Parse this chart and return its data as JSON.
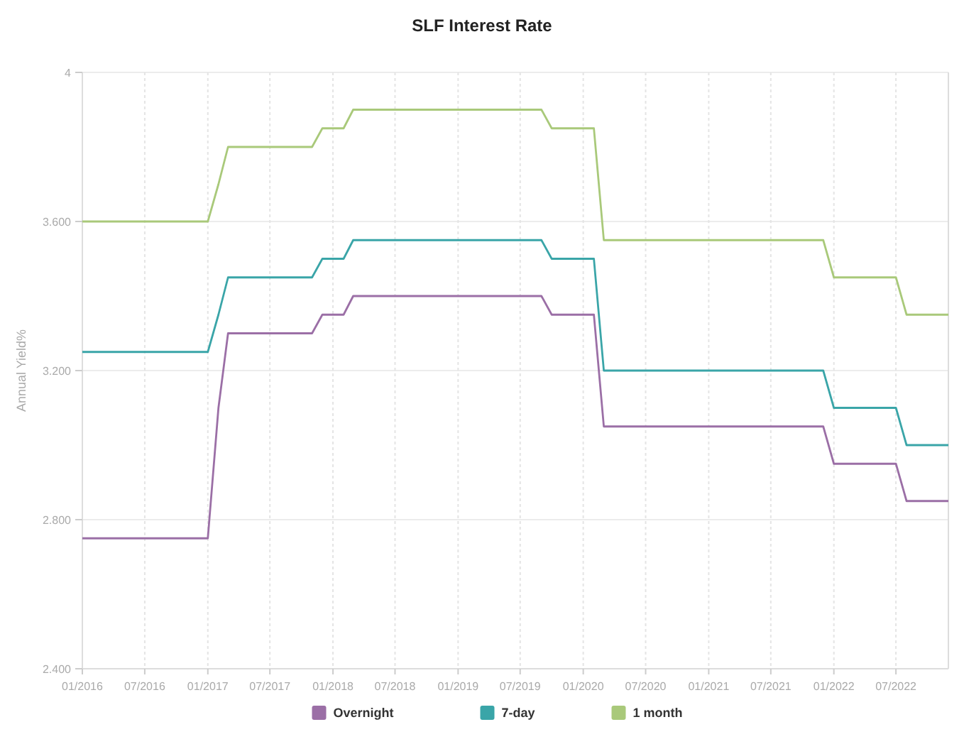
{
  "chart_data": {
    "type": "step",
    "title": "SLF Interest Rate",
    "ylabel": "Annual Yield%",
    "x": [
      "2016-01",
      "2017-01",
      "2017-02",
      "2017-03",
      "2017-11",
      "2017-12",
      "2018-02",
      "2018-03",
      "2019-09",
      "2019-10",
      "2020-02",
      "2020-03",
      "2021-12",
      "2022-01",
      "2022-07",
      "2022-08",
      "2022-12"
    ],
    "series": [
      {
        "name": "Overnight",
        "color": "#9b6fa6",
        "values": [
          2.75,
          2.75,
          3.1,
          3.3,
          3.3,
          3.35,
          3.35,
          3.4,
          3.4,
          3.35,
          3.35,
          3.05,
          3.05,
          2.95,
          2.95,
          2.85,
          2.85
        ]
      },
      {
        "name": "7-day",
        "color": "#3aa5a8",
        "values": [
          3.25,
          3.25,
          3.35,
          3.45,
          3.45,
          3.5,
          3.5,
          3.55,
          3.55,
          3.5,
          3.5,
          3.2,
          3.2,
          3.1,
          3.1,
          3.0,
          3.0
        ]
      },
      {
        "name": "1 month",
        "color": "#a9c97a",
        "values": [
          3.6,
          3.6,
          3.7,
          3.8,
          3.8,
          3.85,
          3.85,
          3.9,
          3.9,
          3.85,
          3.85,
          3.55,
          3.55,
          3.45,
          3.45,
          3.35,
          3.35
        ]
      }
    ],
    "xlim": [
      "2016-01",
      "2022-12"
    ],
    "xticks": [
      {
        "value": "2016-01",
        "label": "01/2016"
      },
      {
        "value": "2016-07",
        "label": "07/2016"
      },
      {
        "value": "2017-01",
        "label": "01/2017"
      },
      {
        "value": "2017-07",
        "label": "07/2017"
      },
      {
        "value": "2018-01",
        "label": "01/2018"
      },
      {
        "value": "2018-07",
        "label": "07/2018"
      },
      {
        "value": "2019-01",
        "label": "01/2019"
      },
      {
        "value": "2019-07",
        "label": "07/2019"
      },
      {
        "value": "2020-01",
        "label": "01/2020"
      },
      {
        "value": "2020-07",
        "label": "07/2020"
      },
      {
        "value": "2021-01",
        "label": "01/2021"
      },
      {
        "value": "2021-07",
        "label": "07/2021"
      },
      {
        "value": "2022-01",
        "label": "01/2022"
      },
      {
        "value": "2022-07",
        "label": "07/2022"
      }
    ],
    "ylim": [
      2.4,
      4
    ],
    "yticks": [
      {
        "value": 2.4,
        "label": "2.400"
      },
      {
        "value": 2.8,
        "label": "2.800"
      },
      {
        "value": 3.2,
        "label": "3.200"
      },
      {
        "value": 3.6,
        "label": "3.600"
      },
      4
    ],
    "grid": true,
    "legend": "bottom",
    "marker": "none",
    "line_style": "solid"
  }
}
